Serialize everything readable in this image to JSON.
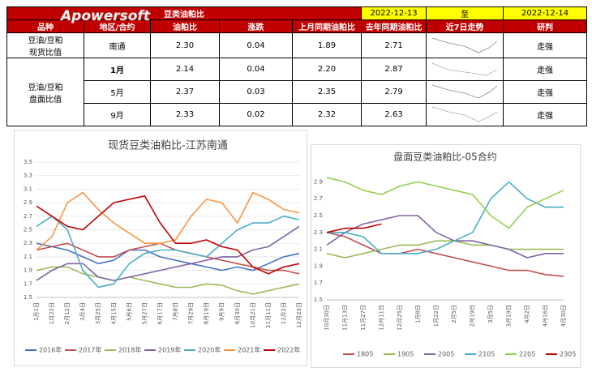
{
  "watermark": "Apowersoft",
  "table": {
    "title": "豆类油粕比",
    "date_from": "2022-12-13",
    "date_sep": "至",
    "date_to": "2022-12-14",
    "headers": [
      "品种",
      "地区/合约",
      "油粕比",
      "涨跌",
      "上月同期油粕比",
      "去年同期油粕比",
      "近7日走势",
      "研判"
    ],
    "rows": [
      [
        "豆油/豆粕\n现货比值",
        "南通",
        "2.30",
        "0.04",
        "1.89",
        "2.71",
        "走强"
      ],
      [
        "豆油/豆粕\n盘面比值",
        "1月",
        "2.14",
        "0.04",
        "2.20",
        "2.87",
        "走强"
      ],
      [
        "5月",
        "2.37",
        "0.03",
        "2.35",
        "2.79",
        "走强"
      ],
      [
        "9月",
        "2.33",
        "0.02",
        "2.32",
        "2.63",
        "走强"
      ]
    ]
  },
  "chart_data": [
    {
      "type": "line",
      "title": "现货豆类油粕比-江苏南通",
      "categories": [
        "1月1日",
        "1月22日",
        "2月12日",
        "3月4日",
        "3月25日",
        "4月15日",
        "5月6日",
        "5月27日",
        "6月17日",
        "7月8日",
        "7月29日",
        "8月19日",
        "9月9日",
        "9月30日",
        "10月21日",
        "11月11日",
        "12月2日",
        "12月23日"
      ],
      "ylim": [
        1.5,
        3.5
      ],
      "yticks": [
        1.5,
        1.7,
        1.9,
        2.1,
        2.3,
        2.5,
        2.7,
        2.9,
        3.1,
        3.3,
        3.5
      ],
      "grid": true,
      "legend": "bottom",
      "series": [
        {
          "name": "2016年",
          "color": "#4472c4",
          "values": [
            2.3,
            2.25,
            2.2,
            2.1,
            2.0,
            2.05,
            2.2,
            2.2,
            2.1,
            2.05,
            2.0,
            1.95,
            1.9,
            1.95,
            1.9,
            2.0,
            2.1,
            2.15
          ]
        },
        {
          "name": "2017年",
          "color": "#c0504d",
          "values": [
            2.2,
            2.25,
            2.3,
            2.2,
            2.1,
            2.1,
            2.2,
            2.25,
            2.3,
            2.2,
            2.15,
            2.1,
            2.05,
            2.0,
            1.95,
            1.9,
            1.9,
            1.85
          ]
        },
        {
          "name": "2018年",
          "color": "#9bbb59",
          "values": [
            1.9,
            1.95,
            1.95,
            1.85,
            1.8,
            1.75,
            1.8,
            1.75,
            1.7,
            1.65,
            1.65,
            1.7,
            1.68,
            1.6,
            1.55,
            1.6,
            1.65,
            1.7
          ]
        },
        {
          "name": "2019年",
          "color": "#8064a2",
          "values": [
            1.75,
            1.9,
            2.0,
            2.0,
            1.8,
            1.75,
            1.8,
            1.85,
            1.9,
            1.95,
            2.0,
            2.05,
            2.1,
            2.1,
            2.2,
            2.25,
            2.4,
            2.55
          ]
        },
        {
          "name": "2020年",
          "color": "#4bacc6",
          "values": [
            2.55,
            2.7,
            2.5,
            1.9,
            1.65,
            1.7,
            2.0,
            2.15,
            2.2,
            2.2,
            2.15,
            2.1,
            2.3,
            2.5,
            2.6,
            2.6,
            2.7,
            2.65
          ]
        },
        {
          "name": "2021年",
          "color": "#f79646",
          "values": [
            2.2,
            2.4,
            2.9,
            3.05,
            2.8,
            2.6,
            2.45,
            2.3,
            2.3,
            2.35,
            2.7,
            2.95,
            2.9,
            2.6,
            3.05,
            2.95,
            2.8,
            2.75
          ]
        },
        {
          "name": "2022年",
          "color": "#c00000",
          "values": [
            2.85,
            2.7,
            2.55,
            2.5,
            2.7,
            2.9,
            2.95,
            3.0,
            2.6,
            2.3,
            2.3,
            2.35,
            2.25,
            2.2,
            1.95,
            1.85,
            1.95,
            2.0
          ]
        }
      ]
    },
    {
      "type": "line",
      "title": "盘面豆类油粕比-05合约",
      "categories": [
        "10月30日",
        "11月13日",
        "11月27日",
        "12月11日",
        "12月25日",
        "1月8日",
        "1月22日",
        "2月5日",
        "2月19日",
        "3月5日",
        "3月19日",
        "4月2日",
        "4月16日",
        "4月30日"
      ],
      "ylim": [
        1.5,
        3.0
      ],
      "yticks": [
        1.5,
        1.7,
        1.9,
        2.1,
        2.3,
        2.5,
        2.7,
        2.9
      ],
      "grid": false,
      "legend": "bottom",
      "series": [
        {
          "name": "1805",
          "color": "#c0504d",
          "values": [
            2.3,
            2.25,
            2.15,
            2.05,
            2.05,
            2.1,
            2.05,
            2.0,
            1.95,
            1.9,
            1.85,
            1.85,
            1.8,
            1.78
          ]
        },
        {
          "name": "1905",
          "color": "#9bbb59",
          "values": [
            2.05,
            2.0,
            2.05,
            2.1,
            2.15,
            2.15,
            2.2,
            2.2,
            2.15,
            2.15,
            2.1,
            2.1,
            2.1,
            2.1
          ]
        },
        {
          "name": "2005",
          "color": "#8064a2",
          "values": [
            2.15,
            2.3,
            2.4,
            2.45,
            2.5,
            2.5,
            2.3,
            2.2,
            2.2,
            2.15,
            2.1,
            2.0,
            2.05,
            2.05
          ]
        },
        {
          "name": "2105",
          "color": "#4bacc6",
          "values": [
            2.3,
            2.3,
            2.25,
            2.05,
            2.05,
            2.05,
            2.1,
            2.2,
            2.3,
            2.7,
            2.9,
            2.7,
            2.6,
            2.6
          ]
        },
        {
          "name": "2205",
          "color": "#92d050",
          "values": [
            2.95,
            2.9,
            2.8,
            2.75,
            2.85,
            2.9,
            2.85,
            2.8,
            2.75,
            2.5,
            2.35,
            2.6,
            2.7,
            2.8
          ]
        },
        {
          "name": "2305",
          "color": "#c00000",
          "values": [
            2.3,
            2.35,
            2.35,
            2.4,
            null,
            null,
            null,
            null,
            null,
            null,
            null,
            null,
            null,
            null
          ]
        }
      ]
    }
  ]
}
